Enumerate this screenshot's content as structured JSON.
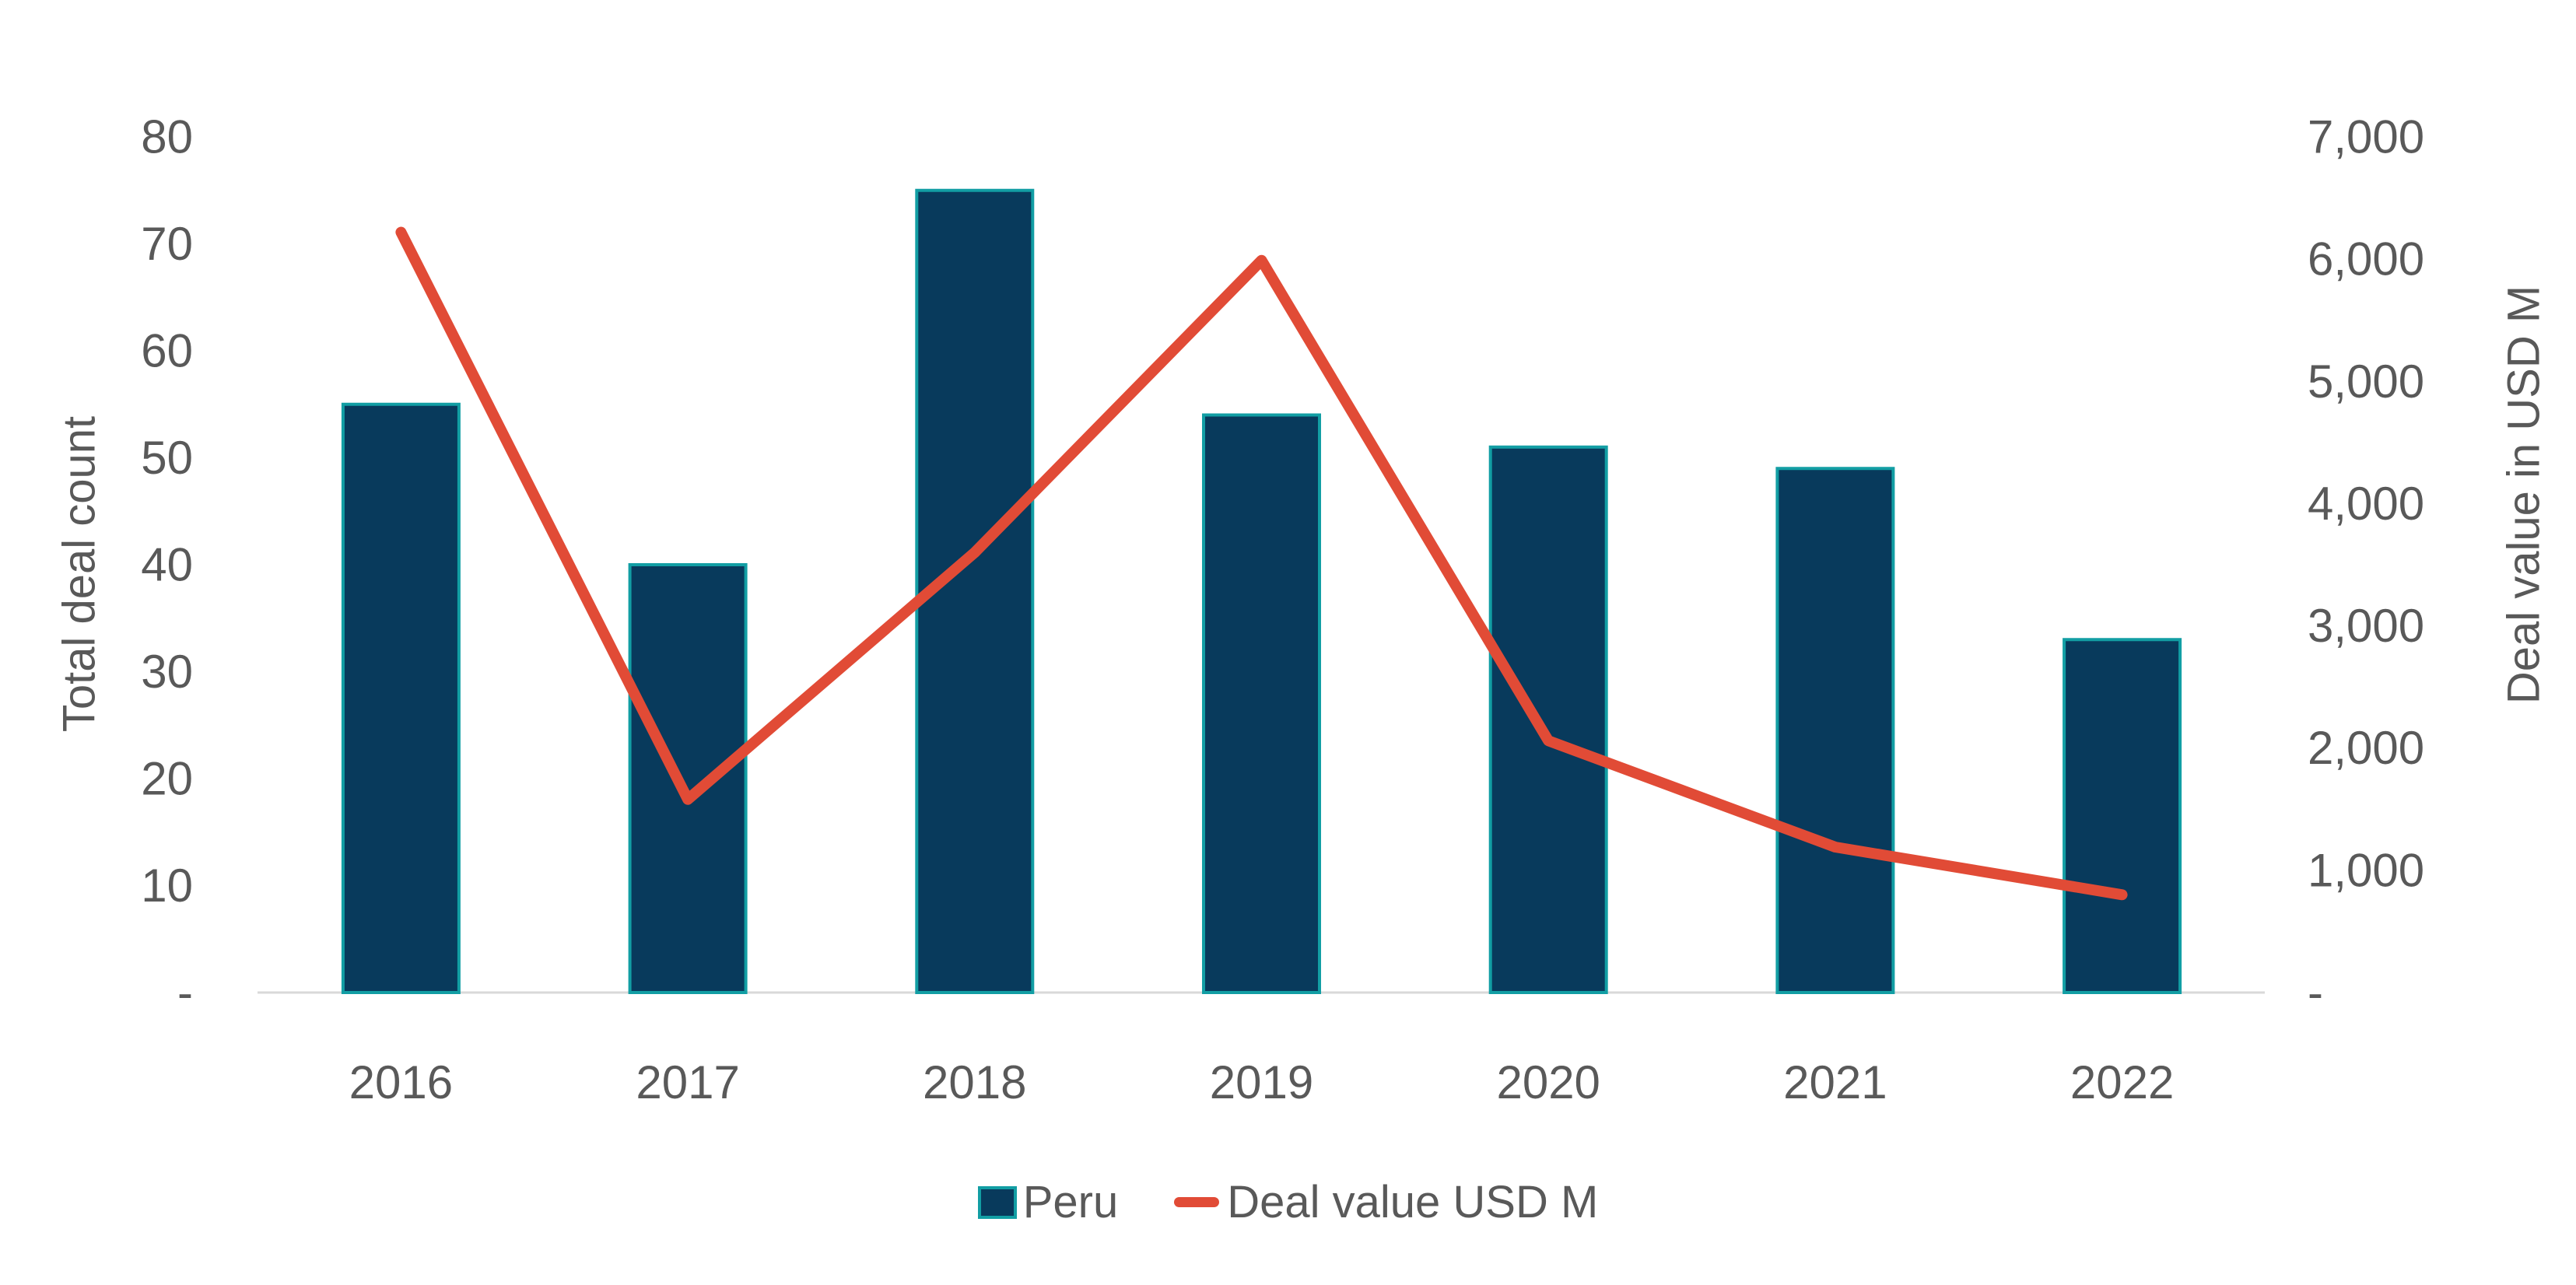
{
  "page": {
    "background": "#FFFFFF"
  },
  "chart_data": {
    "type": "combo: bar + line, dual axis",
    "categories": [
      "2016",
      "2017",
      "2018",
      "2019",
      "2020",
      "2021",
      "2022"
    ],
    "series": [
      {
        "name": "Peru",
        "type": "bar",
        "axis": "left",
        "values": [
          55,
          40,
          75,
          54,
          51,
          49,
          33
        ],
        "fill": "#083A5C",
        "border": "#129EA4"
      },
      {
        "name": "Deal value USD M",
        "type": "line",
        "axis": "right",
        "values": [
          6220,
          1580,
          3600,
          5990,
          2060,
          1190,
          800
        ],
        "color": "#E14B36"
      }
    ],
    "left_axis": {
      "title": "Total deal count",
      "min": 0,
      "max": 80,
      "tick_step": 10,
      "tick_labels_top_to_bottom": [
        "80",
        "70",
        "60",
        "50",
        "40",
        "30",
        "20",
        "10",
        "-"
      ],
      "zero_label": "-"
    },
    "right_axis": {
      "title": "Deal value in USD M",
      "min": 0,
      "max": 7000,
      "tick_step": 1000,
      "tick_labels_top_to_bottom": [
        "7,000",
        "6,000",
        "5,000",
        "4,000",
        "3,000",
        "2,000",
        "1,000",
        "-"
      ],
      "zero_label": "-"
    },
    "legend": {
      "position": "bottom",
      "items": [
        {
          "label": "Peru",
          "marker": "square"
        },
        {
          "label": "Deal value USD M",
          "marker": "line"
        }
      ]
    },
    "grid": false,
    "text_color": "#595959",
    "axis_line_color": "#D9D9D9"
  }
}
